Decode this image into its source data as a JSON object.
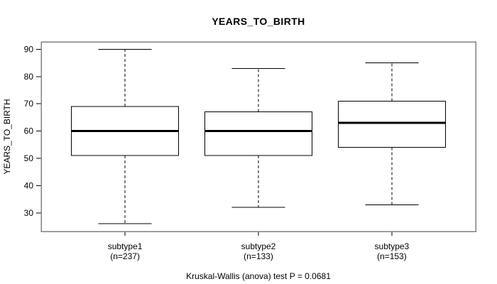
{
  "chart_data": {
    "type": "boxplot",
    "title": "YEARS_TO_BIRTH",
    "ylabel": "YEARS_TO_BIRTH",
    "footer": "Kruskal-Wallis (anova) test P = 0.0681",
    "yticks": [
      30,
      40,
      50,
      60,
      70,
      80,
      90
    ],
    "ylim": [
      23.2,
      92.7
    ],
    "grid": false,
    "legend": "none",
    "groups": [
      {
        "label": "subtype1",
        "sublabel": "(n=237)",
        "n": 237,
        "whisker_low": 26,
        "q1": 51,
        "median": 60,
        "q3": 69,
        "whisker_high": 90
      },
      {
        "label": "subtype2",
        "sublabel": "(n=133)",
        "n": 133,
        "whisker_low": 32,
        "q1": 51,
        "median": 60,
        "q3": 67,
        "whisker_high": 83
      },
      {
        "label": "subtype3",
        "sublabel": "(n=153)",
        "n": 153,
        "whisker_low": 33,
        "q1": 54,
        "median": 63,
        "q3": 71,
        "whisker_high": 85
      }
    ],
    "colors": {
      "frame": "#808080",
      "line": "#000000",
      "box_fill": "#ffffff",
      "background": "#ffffff"
    }
  }
}
